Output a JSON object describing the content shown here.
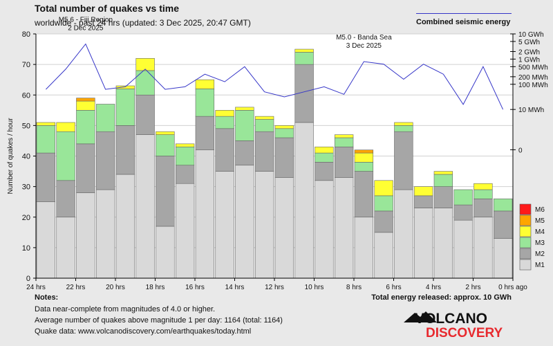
{
  "title": "Total number of quakes vs time",
  "subtitle": "worldwide - past 24 hrs (updated: 3 Dec 2025, 20:47 GMT)",
  "energy_legend_label": "Combined seismic energy",
  "notes": {
    "title": "Notes:",
    "line1": "Data near-complete from magnitudes of 4.0 or higher.",
    "line2": "Average number of quakes above magnitude 1 per day: 1164 (total: 1164)",
    "line3": "Quake data: www.volcanodiscovery.com/earthquakes/today.html"
  },
  "total_energy": "Total energy released: approx. 10 GWh",
  "logo": {
    "word1": "VOLCANO",
    "word2": "DISCOVERY"
  },
  "colors": {
    "M1": "#d9d9d9",
    "M2": "#a6a6a6",
    "M3": "#99e699",
    "M4": "#ffff33",
    "M5": "#ffa500",
    "M6": "#ff1a1a",
    "energy_line": "#3535c8",
    "logo_red": "#e8292e"
  },
  "chart_data": {
    "type": "bar",
    "stacked": true,
    "ylabel": "Number of quakes / hour",
    "ylim": [
      0,
      80
    ],
    "yticks": [
      0,
      10,
      20,
      30,
      40,
      50,
      60,
      70,
      80
    ],
    "xlabel": "",
    "xlim": [
      24,
      0
    ],
    "xticks": [
      "24 hrs",
      "22 hrs",
      "20 hrs",
      "18 hrs",
      "16 hrs",
      "14 hrs",
      "12 hrs",
      "10 hrs",
      "8 hrs",
      "6 hrs",
      "4 hrs",
      "2 hrs",
      "0 hrs ago"
    ],
    "legend": [
      "M6",
      "M5",
      "M4",
      "M3",
      "M2",
      "M1"
    ],
    "series": [
      {
        "name": "M1",
        "values": [
          25,
          20,
          28,
          29,
          34,
          47,
          17,
          31,
          42,
          35,
          37,
          35,
          33,
          51,
          32,
          33,
          20,
          15,
          29,
          23,
          23,
          19,
          20,
          13
        ]
      },
      {
        "name": "M2",
        "values": [
          16,
          12,
          16,
          19,
          16,
          13,
          23,
          6,
          11,
          14,
          8,
          13,
          13,
          19,
          6,
          10,
          15,
          7,
          19,
          4,
          7,
          5,
          6,
          9
        ]
      },
      {
        "name": "M3",
        "values": [
          9,
          16,
          11,
          9,
          12,
          8,
          7,
          6,
          9,
          4,
          10,
          4,
          3,
          4,
          3,
          3,
          3,
          5,
          2,
          0,
          4,
          5,
          3,
          4
        ]
      },
      {
        "name": "M4",
        "values": [
          1,
          3,
          3,
          0,
          1,
          4,
          1,
          1,
          3,
          2,
          1,
          1,
          1,
          1,
          2,
          1,
          3,
          5,
          1,
          3,
          1,
          0,
          2,
          0
        ]
      },
      {
        "name": "M5",
        "values": [
          0,
          0,
          1,
          0,
          0,
          0,
          0,
          0,
          0,
          0,
          0,
          0,
          0,
          0,
          0,
          0,
          1,
          0,
          0,
          0,
          0,
          0,
          0,
          0
        ]
      },
      {
        "name": "M6",
        "values": [
          0,
          0,
          0,
          0,
          0,
          0,
          0,
          0,
          0,
          0,
          0,
          0,
          0,
          0,
          0,
          0,
          0,
          0,
          0,
          0,
          0,
          0,
          0,
          0
        ]
      }
    ],
    "energy_axis": {
      "ticks": [
        {
          "label": "10 GWh",
          "log_mwh": 4.0
        },
        {
          "label": "5 GWh",
          "log_mwh": 3.7
        },
        {
          "label": "2 GWh",
          "log_mwh": 3.3
        },
        {
          "label": "1 GWh",
          "log_mwh": 3.0
        },
        {
          "label": "500 MWh",
          "log_mwh": 2.7
        },
        {
          "label": "200 MWh",
          "log_mwh": 2.3
        },
        {
          "label": "100 MWh",
          "log_mwh": 2.0
        },
        {
          "label": "10 MWh",
          "log_mwh": 1.0
        },
        {
          "label": "0",
          "log_mwh": -0.6
        }
      ],
      "range_log_mwh": [
        -5.7,
        4.0
      ]
    },
    "energy_series": {
      "name": "Combined seismic energy",
      "log_mwh": [
        1.8,
        2.6,
        3.6,
        1.8,
        1.9,
        2.6,
        1.8,
        1.9,
        2.4,
        2.1,
        2.7,
        1.7,
        1.5,
        1.7,
        1.9,
        1.6,
        2.9,
        2.8,
        2.2,
        2.8,
        2.4,
        1.2,
        2.7,
        1.0
      ]
    },
    "annotations": [
      {
        "text": "M5.6 - Fiji Region",
        "text2": "2 Dec 2025",
        "hour": 21.5
      },
      {
        "text": "M5.0 - Banda Sea",
        "text2": "3 Dec 2025",
        "hour": 7.5
      }
    ]
  }
}
